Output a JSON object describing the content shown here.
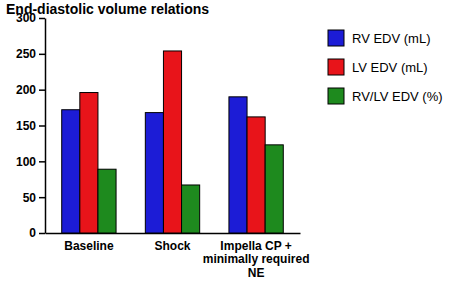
{
  "chart_data": {
    "type": "bar",
    "title": "End-diastolic volume relations",
    "categories": [
      "Baseline",
      "Shock",
      "Impella CP + minimally required NE"
    ],
    "series": [
      {
        "name": "RV EDV (mL)",
        "color": "#1c1cd6",
        "values": [
          172,
          168,
          190
        ]
      },
      {
        "name": "LV EDV (mL)",
        "color": "#e8141a",
        "values": [
          196,
          254,
          162
        ]
      },
      {
        "name": "RV/LV EDV (%)",
        "color": "#1e8a1e",
        "values": [
          89,
          67,
          123
        ]
      }
    ],
    "ylim": [
      0,
      300
    ],
    "yticks": [
      0,
      50,
      100,
      150,
      200,
      250,
      300
    ],
    "legend": "right"
  }
}
